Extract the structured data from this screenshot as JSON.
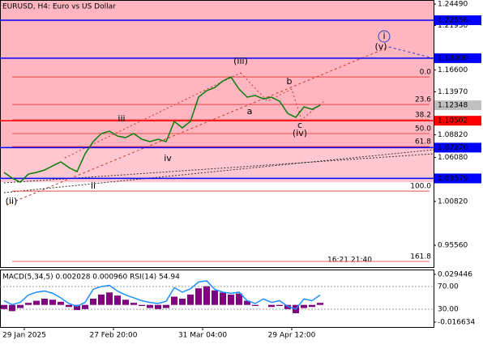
{
  "chart_data": {
    "type": "line",
    "title": "EURUSD, H4:  Euro vs US Dollar",
    "series": [
      {
        "color": "#0a7d0a",
        "values": [
          1.043,
          1.0362,
          1.0313,
          1.041,
          1.043,
          1.0459,
          1.0508,
          1.0556,
          1.0488,
          1.0439,
          1.0653,
          1.0799,
          1.0896,
          1.0925,
          1.0866,
          1.0847,
          1.0896,
          1.0828,
          1.0799,
          1.0828,
          1.0799,
          1.1042,
          1.0964,
          1.1042,
          1.1333,
          1.141,
          1.1449,
          1.1527,
          1.1575,
          1.1429,
          1.1333,
          1.1352,
          1.1313,
          1.1333,
          1.1284,
          1.1138,
          1.109,
          1.1216,
          1.1187,
          1.1235
        ]
      }
    ],
    "xlim": [
      -0.5,
      53
    ],
    "xticks": [
      {
        "value": 2.5,
        "label": "29 Jan 2025"
      },
      {
        "value": 13.5,
        "label": "27 Feb 20:00"
      },
      {
        "value": 24.5,
        "label": "31 Mar 04:00"
      },
      {
        "value": 35.5,
        "label": "29 Apr 12:00"
      }
    ],
    "ylim": [
      0.9294,
      1.2498
    ],
    "yticks": [
      {
        "value": 1.2449,
        "label": "1.24490"
      },
      {
        "value": 1.2193,
        "label": "1.21930"
      },
      {
        "value": 1.166,
        "label": "1.16600"
      },
      {
        "value": 1.1397,
        "label": "1.13970"
      },
      {
        "value": 1.0882,
        "label": "1.08820"
      },
      {
        "value": 1.0608,
        "label": "1.06080"
      },
      {
        "value": 1.0082,
        "label": "1.00820"
      },
      {
        "value": 0.9556,
        "label": "0.95560"
      }
    ],
    "levels": [
      {
        "price": 1.22556,
        "color": "#0000ff"
      },
      {
        "price": {
          "value": 1.18,
          "label": "1.18000"
        },
        "color": "#0000ff"
      },
      {
        "price": 1.10502,
        "color": "#ff0000"
      },
      {
        "price": {
          "value": 1.0727,
          "label": "1.07270"
        },
        "color": "#0000ff"
      },
      {
        "price": 1.03579,
        "color": "#0000ff"
      }
    ],
    "current_price": 1.12348,
    "fib": [
      {
        "label": "0.0",
        "price": 1.1575
      },
      {
        "label": "23.6",
        "price": 1.1245
      },
      {
        "label": "38.2",
        "price": 1.1061
      },
      {
        "label": "50.0",
        "price": 1.0896
      },
      {
        "label": "61.8",
        "price": 1.074
      },
      {
        "label": "100.0",
        "price": 1.0206
      },
      {
        "label": "161.8",
        "price": 0.9362
      }
    ],
    "annotations": [
      {
        "text": "(ii)",
        "x": 0.9,
        "y": 1.008,
        "color": "#c0392b"
      },
      {
        "text": "ii",
        "x": 11,
        "y": 1.0265,
        "color": "#666666"
      },
      {
        "text": "iii",
        "x": 14.5,
        "y": 1.107,
        "color": "#666666"
      },
      {
        "text": "iv",
        "x": 20.2,
        "y": 1.0595,
        "color": "#666666"
      },
      {
        "text": "(iii)",
        "x": 29.2,
        "y": 1.176,
        "color": "#c0392b"
      },
      {
        "text": "a",
        "x": 30.3,
        "y": 1.1158,
        "color": "#666666"
      },
      {
        "text": "b",
        "x": 35.2,
        "y": 1.1517,
        "color": "#666666"
      },
      {
        "text": "c",
        "x": 36.5,
        "y": 1.0993,
        "color": "#666666"
      },
      {
        "text": "(iv)",
        "x": 36.5,
        "y": 1.0896,
        "color": "#c0392b"
      },
      {
        "text": "(v)",
        "x": 46.5,
        "y": 1.1934,
        "color": "#c0392b"
      },
      {
        "text": "i",
        "x": 46.9,
        "y": 1.2061,
        "color": "#2a3fbf"
      }
    ],
    "time_marks": [
      "16:21",
      "21:40"
    ],
    "indicator": {
      "title": "MACD(5,34,5) 0.002028 0.000960 RSI(14) 54.94",
      "ylim": [
        -0.016634,
        0.029446
      ],
      "yticks": [
        0.029446,
        -0.016634
      ],
      "rsi_ylim": [
        7.1,
        91.4
      ],
      "rsi_ticks": [
        {
          "value": 70,
          "label": "70.00"
        },
        {
          "value": 30,
          "label": "30.00"
        }
      ],
      "histogram": {
        "color": "#800080",
        "values": [
          -0.004,
          -0.006,
          -0.003,
          0.002,
          0.004,
          0.006,
          0.005,
          0.003,
          -0.002,
          -0.005,
          -0.004,
          0.006,
          0.01,
          0.012,
          0.009,
          0.005,
          0.002,
          -0.001,
          -0.003,
          -0.004,
          -0.003,
          0.008,
          0.006,
          0.01,
          0.016,
          0.018,
          0.014,
          0.012,
          0.01,
          0.011,
          0.004,
          -0.001,
          0.0,
          -0.002,
          -0.001,
          -0.004,
          -0.008,
          -0.003,
          -0.002,
          0.002
        ]
      },
      "rsi": {
        "color": "#1e90ff",
        "values": [
          45,
          38,
          42,
          55,
          60,
          62,
          58,
          50,
          40,
          35,
          42,
          65,
          70,
          72,
          62,
          55,
          50,
          45,
          42,
          40,
          44,
          68,
          60,
          66,
          78,
          80,
          65,
          60,
          58,
          60,
          45,
          40,
          48,
          42,
          45,
          35,
          30,
          48,
          45,
          55
        ]
      }
    }
  }
}
